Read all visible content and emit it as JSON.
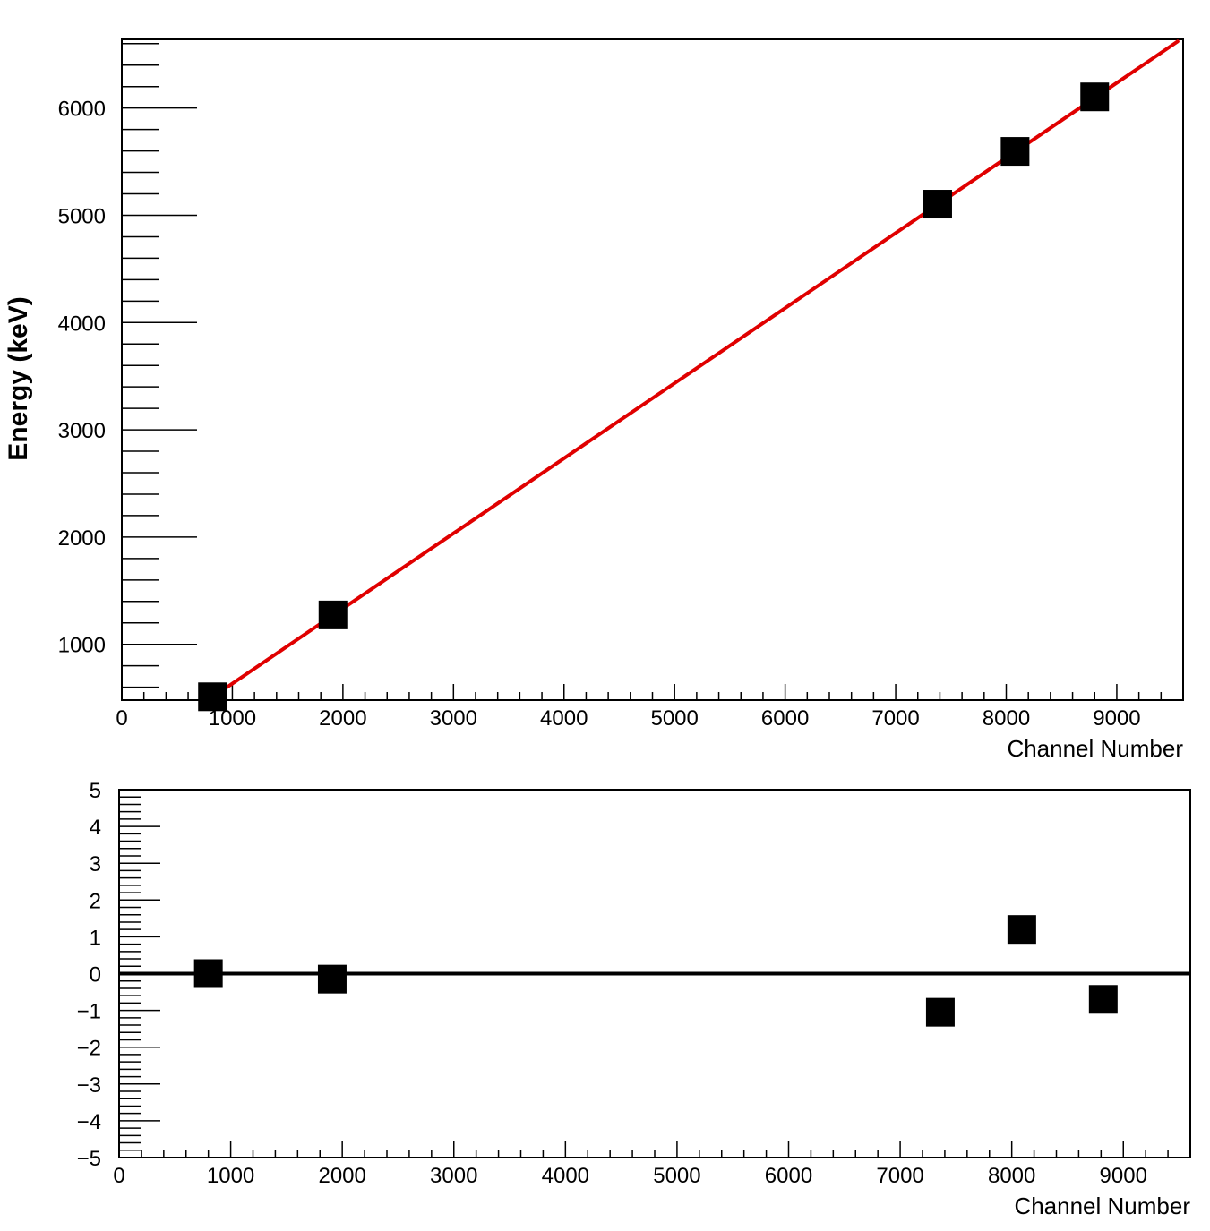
{
  "chart_data": [
    {
      "type": "scatter",
      "title": "",
      "xlabel": "Channel Number",
      "ylabel": "Energy (keV)",
      "xlim": [
        0,
        9600
      ],
      "ylim": [
        480,
        6640
      ],
      "x_ticks": [
        "0",
        "1000",
        "2000",
        "3000",
        "4000",
        "5000",
        "6000",
        "7000",
        "8000",
        "9000"
      ],
      "y_ticks": [
        "1000",
        "2000",
        "3000",
        "4000",
        "5000",
        "6000"
      ],
      "series": [
        {
          "points": [
            [
              820,
              511
            ],
            [
              1910,
              1274
            ],
            [
              7380,
              5104
            ],
            [
              8080,
              5596
            ],
            [
              8800,
              6104
            ]
          ],
          "color": "#000000",
          "marker": "square"
        }
      ],
      "fit_line": {
        "x": [
          780,
          9550
        ],
        "y": [
          480,
          6620
        ],
        "color": "#e00000"
      },
      "grid": false
    },
    {
      "type": "scatter",
      "title": "",
      "xlabel": "Channel Number",
      "ylabel": "",
      "xlim": [
        0,
        9600
      ],
      "ylim": [
        -5,
        5
      ],
      "x_ticks": [
        "0",
        "1000",
        "2000",
        "3000",
        "4000",
        "5000",
        "6000",
        "7000",
        "8000",
        "9000"
      ],
      "y_ticks": [
        "5",
        "4",
        "3",
        "2",
        "1",
        "0",
        "−1",
        "−2",
        "−3",
        "−4",
        "−5"
      ],
      "series": [
        {
          "points": [
            [
              800,
              0.0
            ],
            [
              1910,
              -0.15
            ],
            [
              7360,
              -1.05
            ],
            [
              8090,
              1.2
            ],
            [
              8820,
              -0.7
            ]
          ],
          "color": "#000000",
          "marker": "square"
        }
      ],
      "reference_line": {
        "y": 0,
        "color": "#000000"
      },
      "grid": false
    }
  ]
}
